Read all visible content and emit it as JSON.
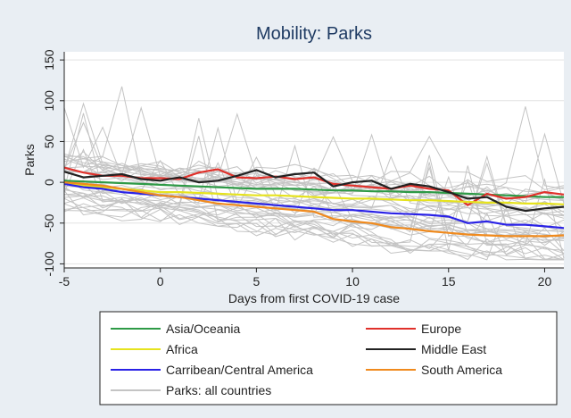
{
  "chart_data": {
    "type": "line",
    "title": "Mobility: Parks",
    "xlabel": "Days from first COVID-19 case",
    "ylabel": "Parks",
    "xlim": [
      -5,
      21
    ],
    "ylim": [
      -105,
      160
    ],
    "xticks": [
      -5,
      0,
      5,
      10,
      15,
      20
    ],
    "yticks": [
      150,
      100,
      50,
      0,
      -50,
      -100
    ],
    "grid": true,
    "legend_position": "bottom",
    "series": [
      {
        "name": "Asia/Oceania",
        "color": "#2e9a46",
        "x": [
          -5,
          -4,
          -3,
          -2,
          -1,
          0,
          1,
          2,
          3,
          4,
          5,
          6,
          7,
          8,
          9,
          10,
          11,
          12,
          13,
          14,
          15,
          16,
          17,
          18,
          19,
          20,
          21
        ],
        "values": [
          2,
          1,
          0,
          -1,
          -2,
          -3,
          -4,
          -5,
          -6,
          -7,
          -8,
          -8,
          -8,
          -9,
          -10,
          -10,
          -11,
          -11,
          -12,
          -12,
          -13,
          -14,
          -15,
          -16,
          -17,
          -18,
          -18
        ]
      },
      {
        "name": "Europe",
        "color": "#e0312b",
        "x": [
          -5,
          -4,
          -3,
          -2,
          -1,
          0,
          1,
          2,
          3,
          4,
          5,
          6,
          7,
          8,
          9,
          10,
          11,
          12,
          13,
          14,
          15,
          16,
          17,
          18,
          19,
          20,
          21
        ],
        "values": [
          18,
          12,
          8,
          8,
          5,
          5,
          4,
          12,
          16,
          6,
          5,
          7,
          4,
          6,
          -2,
          -4,
          -6,
          -8,
          -4,
          -8,
          -10,
          -28,
          -14,
          -20,
          -18,
          -12,
          -15
        ]
      },
      {
        "name": "Africa",
        "color": "#e6e31e",
        "x": [
          -5,
          -4,
          -3,
          -2,
          -1,
          0,
          1,
          2,
          3,
          4,
          5,
          6,
          7,
          8,
          9,
          10,
          11,
          12,
          13,
          14,
          15,
          16,
          17,
          18,
          19,
          20,
          21
        ],
        "values": [
          -2,
          -4,
          -6,
          -8,
          -10,
          -12,
          -12,
          -13,
          -14,
          -15,
          -16,
          -16,
          -17,
          -18,
          -19,
          -20,
          -20,
          -21,
          -22,
          -22,
          -23,
          -24,
          -25,
          -25,
          -26,
          -26,
          -27
        ]
      },
      {
        "name": "Middle East",
        "color": "#222222",
        "x": [
          -5,
          -4,
          -3,
          -2,
          -1,
          0,
          1,
          2,
          3,
          4,
          5,
          6,
          7,
          8,
          9,
          10,
          11,
          12,
          13,
          14,
          15,
          16,
          17,
          18,
          19,
          20,
          21
        ],
        "values": [
          13,
          6,
          8,
          10,
          4,
          2,
          6,
          0,
          2,
          8,
          15,
          6,
          10,
          12,
          -5,
          0,
          2,
          -8,
          -2,
          -5,
          -12,
          -20,
          -18,
          -30,
          -35,
          -32,
          -30
        ]
      },
      {
        "name": "Carribean/Central America",
        "color": "#2a22e6",
        "x": [
          -5,
          -4,
          -3,
          -2,
          -1,
          0,
          1,
          2,
          3,
          4,
          5,
          6,
          7,
          8,
          9,
          10,
          11,
          12,
          13,
          14,
          15,
          16,
          17,
          18,
          19,
          20,
          21
        ],
        "values": [
          -2,
          -6,
          -8,
          -12,
          -14,
          -16,
          -18,
          -20,
          -22,
          -24,
          -26,
          -28,
          -30,
          -32,
          -34,
          -34,
          -36,
          -38,
          -39,
          -40,
          -42,
          -50,
          -48,
          -52,
          -52,
          -54,
          -56
        ]
      },
      {
        "name": "South America",
        "color": "#f08a1d",
        "x": [
          -5,
          -4,
          -3,
          -2,
          -1,
          0,
          1,
          2,
          3,
          4,
          5,
          6,
          7,
          8,
          9,
          10,
          11,
          12,
          13,
          14,
          15,
          16,
          17,
          18,
          19,
          20,
          21
        ],
        "values": [
          0,
          -2,
          -4,
          -8,
          -12,
          -16,
          -18,
          -22,
          -26,
          -28,
          -30,
          -32,
          -34,
          -36,
          -45,
          -48,
          -50,
          -55,
          -57,
          -60,
          -62,
          -64,
          -65,
          -66,
          -66,
          -66,
          -65
        ]
      },
      {
        "name": "Parks: all countries",
        "color": "#c4c4c4",
        "x": [],
        "values": []
      }
    ]
  }
}
